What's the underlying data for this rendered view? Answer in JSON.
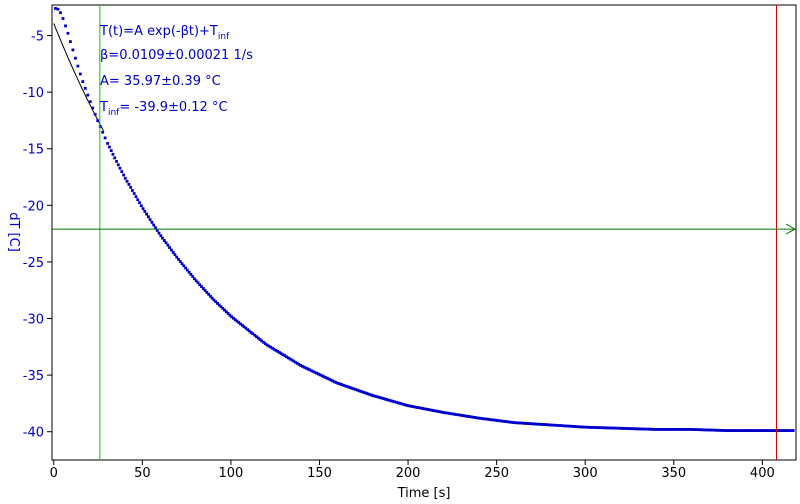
{
  "chart_data": {
    "type": "scatter",
    "xlabel": "Time [s]",
    "ylabel": "dT [C]",
    "xlim": [
      -1,
      419
    ],
    "ylim": [
      -42.5,
      -2.3
    ],
    "xticks": [
      0,
      50,
      100,
      150,
      200,
      250,
      300,
      350,
      400
    ],
    "yticks": [
      -5,
      -10,
      -15,
      -20,
      -25,
      -30,
      -35,
      -40
    ],
    "grid": false,
    "colors": {
      "frame": "#000000",
      "data": "#0000cc",
      "fit": "#000000",
      "vline_start": "#00cc00",
      "vline_end": "#cc0000",
      "hline": "#007700",
      "text": "#0000cc"
    },
    "fit": {
      "A": 35.97,
      "beta": 0.0109,
      "T_inf": -39.9
    },
    "series": [
      {
        "x": [
          1,
          3,
          5,
          8,
          12,
          16,
          20,
          25,
          30,
          35,
          40,
          50,
          60,
          70,
          80,
          90,
          100,
          120,
          140,
          160,
          180,
          200,
          220,
          240,
          260,
          280,
          300,
          320,
          340,
          360,
          380,
          400,
          418
        ],
        "y": [
          -2.6,
          -2.7,
          -3.4,
          -4.8,
          -6.9,
          -8.9,
          -10.6,
          -12.6,
          -14.4,
          -16.0,
          -17.5,
          -20.2,
          -22.6,
          -24.7,
          -26.6,
          -28.3,
          -29.8,
          -32.3,
          -34.2,
          -35.7,
          -36.8,
          -37.7,
          -38.3,
          -38.8,
          -39.2,
          -39.4,
          -39.6,
          -39.7,
          -39.8,
          -39.8,
          -39.9,
          -39.9,
          -39.9
        ]
      }
    ],
    "markers": {
      "vline_start": 26,
      "vline_end": 408,
      "hline": -22.1
    },
    "annotations": {
      "formula_main": "T(t)=A exp(-βt)+T",
      "formula_sub": "inf",
      "beta": "β=0.0109±0.00021 1/s",
      "A": "A= 35.97±0.39 °C",
      "tinf_prefix": "T",
      "tinf_sub": "inf",
      "tinf_value": "= -39.9±0.12 °C"
    }
  }
}
